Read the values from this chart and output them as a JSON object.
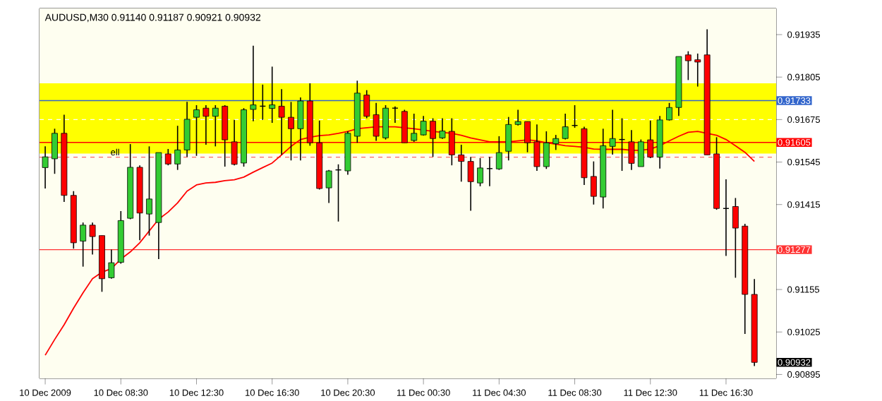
{
  "chart_data": {
    "type": "candlestick",
    "title": "AUDUSD,M30  0.91140 0.91187 0.90921 0.90932",
    "categories": [
      "10 Dec 2009",
      null,
      null,
      null,
      null,
      null,
      null,
      null,
      "10 Dec 08:30",
      null,
      null,
      null,
      null,
      null,
      null,
      null,
      "10 Dec 12:30",
      null,
      null,
      null,
      null,
      null,
      null,
      null,
      "10 Dec 16:30",
      null,
      null,
      null,
      null,
      null,
      null,
      null,
      "10 Dec 20:30",
      null,
      null,
      null,
      null,
      null,
      null,
      null,
      "11 Dec 00:30",
      null,
      null,
      null,
      null,
      null,
      null,
      null,
      "11 Dec 04:30",
      null,
      null,
      null,
      null,
      null,
      null,
      null,
      "11 Dec 08:30",
      null,
      null,
      null,
      null,
      null,
      null,
      null,
      "11 Dec 12:30",
      null,
      null,
      null,
      null,
      null,
      null,
      null,
      "11 Dec 16:30",
      null,
      null,
      null
    ],
    "ohlc": [
      [
        0.91528,
        0.91593,
        0.91464,
        0.91561
      ],
      [
        0.91555,
        0.91647,
        0.91509,
        0.91633
      ],
      [
        0.91633,
        0.9169,
        0.91423,
        0.91443
      ],
      [
        0.91443,
        0.91456,
        0.9128,
        0.91298
      ],
      [
        0.91303,
        0.9136,
        0.91225,
        0.91352
      ],
      [
        0.91352,
        0.9136,
        0.91262,
        0.91317
      ],
      [
        0.9132,
        0.9132,
        0.91148,
        0.91188
      ],
      [
        0.91191,
        0.91277,
        0.91188,
        0.91237
      ],
      [
        0.91238,
        0.91395,
        0.91234,
        0.91366
      ],
      [
        0.91373,
        0.916,
        0.9137,
        0.91529
      ],
      [
        0.91529,
        0.91535,
        0.91306,
        0.91389
      ],
      [
        0.91386,
        0.91593,
        0.9132,
        0.91432
      ],
      [
        0.9136,
        0.91574,
        0.91248,
        0.91574
      ],
      [
        0.9157,
        0.91585,
        0.91535,
        0.91539
      ],
      [
        0.91539,
        0.91656,
        0.91521,
        0.91582
      ],
      [
        0.91582,
        0.91729,
        0.91561,
        0.91676
      ],
      [
        0.91682,
        0.91719,
        0.91564,
        0.91705
      ],
      [
        0.9171,
        0.91719,
        0.91598,
        0.91685
      ],
      [
        0.91685,
        0.91719,
        0.91593,
        0.9171
      ],
      [
        0.91716,
        0.91719,
        0.91531,
        0.91613
      ],
      [
        0.91607,
        0.91674,
        0.91535,
        0.91538
      ],
      [
        0.91542,
        0.9171,
        0.91531,
        0.91705
      ],
      [
        0.91706,
        0.91901,
        0.9167,
        0.9172
      ],
      [
        0.91716,
        0.91782,
        0.91674,
        0.91716
      ],
      [
        0.91709,
        0.91837,
        0.91665,
        0.9172
      ],
      [
        0.91716,
        0.91768,
        0.91567,
        0.91682
      ],
      [
        0.91682,
        0.91729,
        0.9155,
        0.91647
      ],
      [
        0.91647,
        0.91743,
        0.9155,
        0.91732
      ],
      [
        0.91732,
        0.91786,
        0.91595,
        0.91604
      ],
      [
        0.91604,
        0.91672,
        0.91461,
        0.91464
      ],
      [
        0.91466,
        0.91521,
        0.9142,
        0.91518
      ],
      [
        0.91521,
        0.91538,
        0.91363,
        0.91521
      ],
      [
        0.91518,
        0.91639,
        0.91506,
        0.91633
      ],
      [
        0.91624,
        0.91794,
        0.91604,
        0.91756
      ],
      [
        0.9175,
        0.91765,
        0.91679,
        0.91685
      ],
      [
        0.9169,
        0.91726,
        0.9161,
        0.91624
      ],
      [
        0.91619,
        0.91719,
        0.91614,
        0.9171
      ],
      [
        0.9171,
        0.91715,
        0.91665,
        0.9171
      ],
      [
        0.917,
        0.91705,
        0.91604,
        0.91604
      ],
      [
        0.91611,
        0.91693,
        0.91607,
        0.91633
      ],
      [
        0.91628,
        0.91686,
        0.91626,
        0.9167
      ],
      [
        0.9167,
        0.91679,
        0.91561,
        0.91617
      ],
      [
        0.91619,
        0.91679,
        0.91616,
        0.9164
      ],
      [
        0.91639,
        0.91679,
        0.91535,
        0.91567
      ],
      [
        0.91567,
        0.91598,
        0.91485,
        0.91547
      ],
      [
        0.91547,
        0.91561,
        0.91396,
        0.91485
      ],
      [
        0.91481,
        0.91557,
        0.91471,
        0.91527
      ],
      [
        0.91525,
        0.91561,
        0.91471,
        0.91525
      ],
      [
        0.91524,
        0.91624,
        0.91521,
        0.91574
      ],
      [
        0.91578,
        0.91683,
        0.9155,
        0.9166
      ],
      [
        0.9166,
        0.91705,
        0.91657,
        0.91669
      ],
      [
        0.91669,
        0.91669,
        0.91575,
        0.91604
      ],
      [
        0.91607,
        0.9166,
        0.91518,
        0.91531
      ],
      [
        0.91531,
        0.91639,
        0.91524,
        0.91604
      ],
      [
        0.91601,
        0.91628,
        0.91582,
        0.91617
      ],
      [
        0.91617,
        0.91693,
        0.91614,
        0.91653
      ],
      [
        0.91657,
        0.91719,
        0.9165,
        0.91657
      ],
      [
        0.91647,
        0.91653,
        0.91475,
        0.91497
      ],
      [
        0.91501,
        0.91547,
        0.91415,
        0.9144
      ],
      [
        0.91438,
        0.91647,
        0.91403,
        0.91595
      ],
      [
        0.91593,
        0.91705,
        0.91568,
        0.91617
      ],
      [
        0.91614,
        0.91679,
        0.91518,
        0.91614
      ],
      [
        0.91607,
        0.91643,
        0.91521,
        0.91541
      ],
      [
        0.91531,
        0.91614,
        0.91531,
        0.91607
      ],
      [
        0.91613,
        0.91672,
        0.91557,
        0.9156
      ],
      [
        0.9156,
        0.91686,
        0.91525,
        0.91674
      ],
      [
        0.91674,
        0.91726,
        0.91672,
        0.91712
      ],
      [
        0.91712,
        0.91868,
        0.91686,
        0.91868
      ],
      [
        0.91873,
        0.91884,
        0.91796,
        0.91855
      ],
      [
        0.91858,
        0.91877,
        0.91776,
        0.91851
      ],
      [
        0.91873,
        0.91951,
        0.91567,
        0.91567
      ],
      [
        0.9157,
        0.91621,
        0.91399,
        0.91403
      ],
      [
        0.91403,
        0.91492,
        0.91258,
        0.91403
      ],
      [
        0.91409,
        0.91435,
        0.91191,
        0.91343
      ],
      [
        0.91349,
        0.91356,
        0.91019,
        0.9114
      ],
      [
        0.9114,
        0.91187,
        0.90921,
        0.90932
      ]
    ],
    "series": [
      {
        "type": "line",
        "color": "#ff0000",
        "values": [
          0.90954,
          0.91002,
          0.91047,
          0.91098,
          0.91145,
          0.91188,
          0.91208,
          0.91219,
          0.91248,
          0.9127,
          0.91298,
          0.91334,
          0.9137,
          0.91392,
          0.9142,
          0.91456,
          0.91475,
          0.91481,
          0.91483,
          0.91488,
          0.91491,
          0.91499,
          0.91514,
          0.91528,
          0.91542,
          0.91567,
          0.91593,
          0.91614,
          0.91621,
          0.91626,
          0.91628,
          0.91633,
          0.91639,
          0.91647,
          0.9165,
          0.91653,
          0.91653,
          0.91653,
          0.9165,
          0.91647,
          0.91643,
          0.91639,
          0.91636,
          0.91633,
          0.91627,
          0.91619,
          0.91613,
          0.91607,
          0.91607,
          0.91607,
          0.9161,
          0.91613,
          0.9161,
          0.91604,
          0.916,
          0.91595,
          0.91593,
          0.9159,
          0.91585,
          0.91584,
          0.91584,
          0.91584,
          0.91581,
          0.91581,
          0.91585,
          0.91595,
          0.9161,
          0.91624,
          0.91636,
          0.91639,
          0.91633,
          0.91627,
          0.91614,
          0.91595,
          0.91575,
          0.91547
        ]
      }
    ],
    "ylim": [
      0.90883,
      0.92015
    ],
    "yticks": [
      0.90895,
      0.91025,
      0.91155,
      0.91415,
      0.91545,
      0.91675,
      0.91805,
      0.91935
    ],
    "bands": [
      {
        "axis": "y",
        "from": 0.91571,
        "to": 0.91786,
        "color": "#ffff00"
      }
    ],
    "ref_lines": [
      {
        "axis": "y",
        "value": 0.91733,
        "label": "0.91733",
        "color": "#3366cc",
        "line_style": "solid"
      },
      {
        "axis": "y",
        "value": 0.91675,
        "color": "#ffffff",
        "line_style": "dashed"
      },
      {
        "axis": "y",
        "value": 0.91605,
        "label": "0.91605",
        "color": "#ff0000",
        "line_style": "solid"
      },
      {
        "axis": "y",
        "value": 0.9156,
        "color": "#ff6666",
        "line_style": "dashed"
      },
      {
        "axis": "y",
        "value": 0.91277,
        "label": "0.91277",
        "color": "#ff3333",
        "line_style": "solid"
      }
    ],
    "annotations": [
      "ell",
      "0.90932"
    ]
  }
}
